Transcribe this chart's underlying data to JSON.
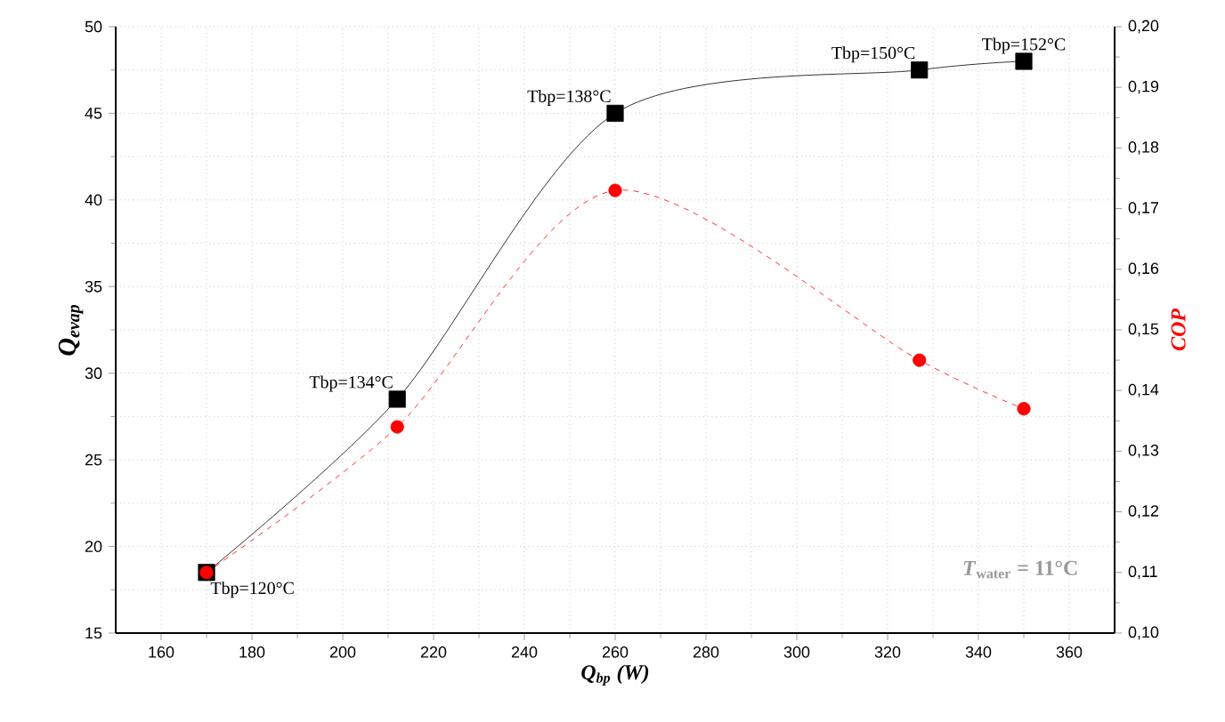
{
  "chart_data": {
    "type": "line",
    "x": [
      170,
      212,
      260,
      327,
      350
    ],
    "series": [
      {
        "name": null,
        "color": "#000000",
        "marker": "square",
        "line_style": "solid",
        "values": [
          18.5,
          28.5,
          45,
          47.5,
          48
        ]
      },
      {
        "name": null,
        "color": "#ff0000",
        "marker": "circle",
        "line_style": "dashed",
        "axis": "y2",
        "values": [
          0.11,
          0.134,
          0.173,
          0.145,
          0.137
        ]
      }
    ],
    "xlabel": "Q$_{bp}$ (W)",
    "ylabel": "Q$_{evap}$",
    "y2label": "COP",
    "xlim": [
      150,
      370
    ],
    "xticks": [
      160,
      180,
      200,
      220,
      240,
      260,
      280,
      300,
      320,
      340,
      360
    ],
    "ylim": [
      15,
      50
    ],
    "yticks": [
      15,
      20,
      25,
      30,
      35,
      40,
      45,
      50
    ],
    "y2lim": [
      0.1,
      0.2
    ],
    "y2ticks": [
      {
        "value": 0.1,
        "label": "0,10"
      },
      {
        "value": 0.11,
        "label": "0,11"
      },
      {
        "value": 0.12,
        "label": "0,12"
      },
      {
        "value": 0.13,
        "label": "0,13"
      },
      {
        "value": 0.14,
        "label": "0,14"
      },
      {
        "value": 0.15,
        "label": "0,15"
      },
      {
        "value": 0.16,
        "label": "0,16"
      },
      {
        "value": 0.17,
        "label": "0,17"
      },
      {
        "value": 0.18,
        "label": "0,18"
      },
      {
        "value": 0.19,
        "label": "0,19"
      },
      {
        "value": 0.2,
        "label": "0,20"
      }
    ],
    "grid": true,
    "annotations": [
      {
        "text": "Tbp=120°C",
        "x": 170,
        "y": 18.5
      },
      {
        "text": "Tbp=134°C",
        "x": 212,
        "y": 28.5
      },
      {
        "text": "Tbp=138°C",
        "x": 260,
        "y": 45
      },
      {
        "text": "Tbp=150°C",
        "x": 327,
        "y": 47.5
      },
      {
        "text": "Tbp=152°C",
        "x": 350,
        "y": 48
      },
      "*T*$_{water}$ = 11°C"
    ]
  }
}
